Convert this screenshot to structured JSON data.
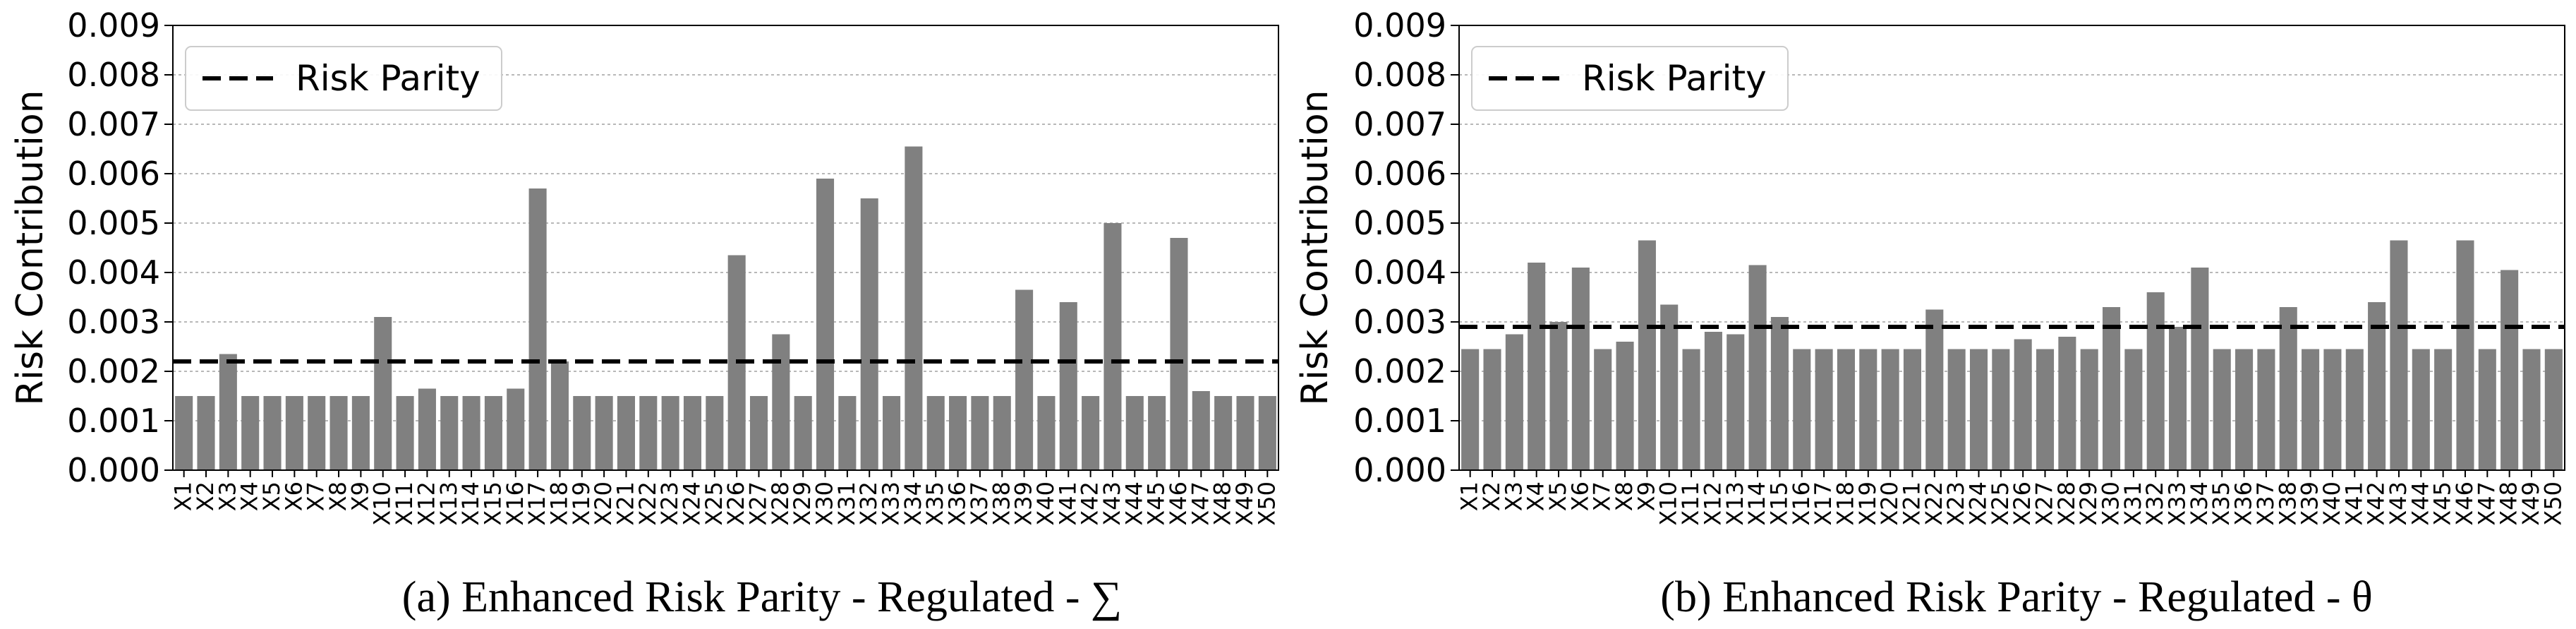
{
  "chart_data": [
    {
      "type": "bar",
      "caption": "(a) Enhanced Risk Parity - Regulated - ∑",
      "ylabel": "Risk Contribution",
      "xlabel": "",
      "ylim": [
        0,
        0.009
      ],
      "yticks": [
        "0.000",
        "0.001",
        "0.002",
        "0.003",
        "0.004",
        "0.005",
        "0.006",
        "0.007",
        "0.008",
        "0.009"
      ],
      "grid": "horizontal dotted",
      "legend": {
        "placement": "top-left",
        "label": "Risk Parity"
      },
      "reference_line": {
        "name": "Risk Parity",
        "value": 0.0022,
        "style": "dashed"
      },
      "bar_color": "#808080",
      "categories": [
        "X1",
        "X2",
        "X3",
        "X4",
        "X5",
        "X6",
        "X7",
        "X8",
        "X9",
        "X10",
        "X11",
        "X12",
        "X13",
        "X14",
        "X15",
        "X16",
        "X17",
        "X18",
        "X19",
        "X20",
        "X21",
        "X22",
        "X23",
        "X24",
        "X25",
        "X26",
        "X27",
        "X28",
        "X29",
        "X30",
        "X31",
        "X32",
        "X33",
        "X34",
        "X35",
        "X36",
        "X37",
        "X38",
        "X39",
        "X40",
        "X41",
        "X42",
        "X43",
        "X44",
        "X45",
        "X46",
        "X47",
        "X48",
        "X49",
        "X50"
      ],
      "values": [
        0.0015,
        0.0015,
        0.00235,
        0.0015,
        0.0015,
        0.0015,
        0.0015,
        0.0015,
        0.0015,
        0.0031,
        0.0015,
        0.00165,
        0.0015,
        0.0015,
        0.0015,
        0.00165,
        0.0057,
        0.0022,
        0.0015,
        0.0015,
        0.0015,
        0.0015,
        0.0015,
        0.0015,
        0.0015,
        0.00435,
        0.0015,
        0.00275,
        0.0015,
        0.0059,
        0.0015,
        0.0055,
        0.0015,
        0.00655,
        0.0015,
        0.0015,
        0.0015,
        0.0015,
        0.00365,
        0.0015,
        0.0034,
        0.0015,
        0.005,
        0.0015,
        0.0015,
        0.0047,
        0.0016,
        0.0015,
        0.0015,
        0.0015
      ]
    },
    {
      "type": "bar",
      "caption": "(b)  Enhanced Risk Parity - Regulated - θ",
      "ylabel": "Risk Contribution",
      "xlabel": "",
      "ylim": [
        0,
        0.009
      ],
      "yticks": [
        "0.000",
        "0.001",
        "0.002",
        "0.003",
        "0.004",
        "0.005",
        "0.006",
        "0.007",
        "0.008",
        "0.009"
      ],
      "grid": "horizontal dotted",
      "legend": {
        "placement": "top-left",
        "label": "Risk Parity"
      },
      "reference_line": {
        "name": "Risk Parity",
        "value": 0.0029,
        "style": "dashed"
      },
      "bar_color": "#808080",
      "categories": [
        "X1",
        "X2",
        "X3",
        "X4",
        "X5",
        "X6",
        "X7",
        "X8",
        "X9",
        "X10",
        "X11",
        "X12",
        "X13",
        "X14",
        "X15",
        "X16",
        "X17",
        "X18",
        "X19",
        "X20",
        "X21",
        "X22",
        "X23",
        "X24",
        "X25",
        "X26",
        "X27",
        "X28",
        "X29",
        "X30",
        "X31",
        "X32",
        "X33",
        "X34",
        "X35",
        "X36",
        "X37",
        "X38",
        "X39",
        "X40",
        "X41",
        "X42",
        "X43",
        "X44",
        "X45",
        "X46",
        "X47",
        "X48",
        "X49",
        "X50"
      ],
      "values": [
        0.00245,
        0.00245,
        0.00275,
        0.0042,
        0.003,
        0.0041,
        0.00245,
        0.0026,
        0.00465,
        0.00335,
        0.00245,
        0.0028,
        0.00275,
        0.00415,
        0.0031,
        0.00245,
        0.00245,
        0.00245,
        0.00245,
        0.00245,
        0.00245,
        0.00325,
        0.00245,
        0.00245,
        0.00245,
        0.00265,
        0.00245,
        0.0027,
        0.00245,
        0.0033,
        0.00245,
        0.0036,
        0.0029,
        0.0041,
        0.00245,
        0.00245,
        0.00245,
        0.0033,
        0.00245,
        0.00245,
        0.00245,
        0.0034,
        0.00465,
        0.00245,
        0.00245,
        0.00465,
        0.00245,
        0.00405,
        0.00245,
        0.00245
      ]
    }
  ]
}
